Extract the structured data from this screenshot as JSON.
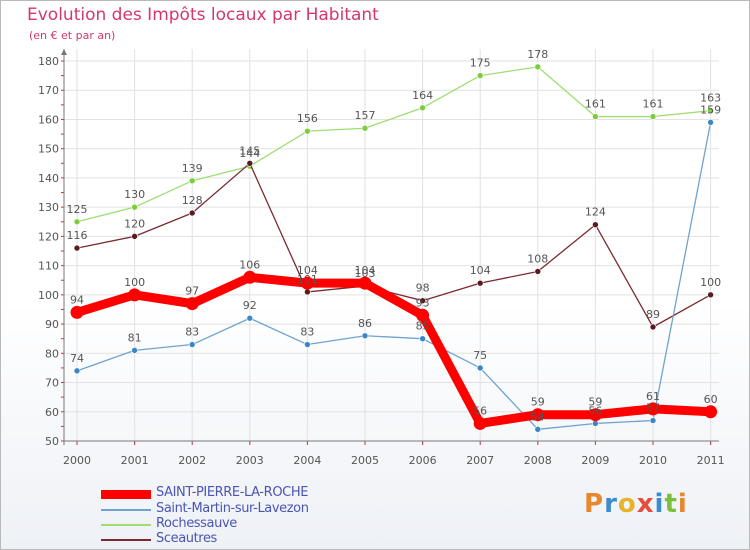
{
  "title": "Evolution des Impôts locaux par Habitant",
  "subtitle": "(en € et par an)",
  "logo": {
    "text": "Proxiti",
    "colors": [
      "#e8872c",
      "#3b8ccf",
      "#e8b32c",
      "#e84c3c",
      "#3b8ccf",
      "#7cbf3c",
      "#e8872c"
    ]
  },
  "chart_data": {
    "type": "line",
    "title": "Evolution des Impôts locaux par Habitant",
    "subtitle": "(en € et par an)",
    "xlabel": "",
    "ylabel": "",
    "ylim": [
      50,
      180
    ],
    "yticks": [
      50,
      60,
      70,
      80,
      90,
      100,
      110,
      120,
      130,
      140,
      150,
      160,
      170,
      180
    ],
    "categories": [
      "2000",
      "2001",
      "2002",
      "2003",
      "2004",
      "2005",
      "2006",
      "2007",
      "2008",
      "2009",
      "2010",
      "2011"
    ],
    "legend_position": "bottom-left",
    "series": [
      {
        "name": "SAINT-PIERRE-LA-ROCHE",
        "color": "#ff0000",
        "values": [
          94,
          100,
          97,
          106,
          104,
          104,
          93,
          56,
          59,
          59,
          61,
          60
        ]
      },
      {
        "name": "Saint-Martin-sur-Lavezon",
        "color": "#6fa3cf",
        "values": [
          74,
          81,
          83,
          92,
          83,
          86,
          85,
          75,
          54,
          56,
          57,
          159
        ]
      },
      {
        "name": "Rochessauve",
        "color": "#9ede72",
        "values": [
          125,
          130,
          139,
          144,
          156,
          157,
          164,
          175,
          178,
          161,
          161,
          163
        ]
      },
      {
        "name": "Sceautres",
        "color": "#7a2a30",
        "values": [
          116,
          120,
          128,
          145,
          101,
          103,
          98,
          104,
          108,
          124,
          89,
          100
        ]
      }
    ]
  }
}
